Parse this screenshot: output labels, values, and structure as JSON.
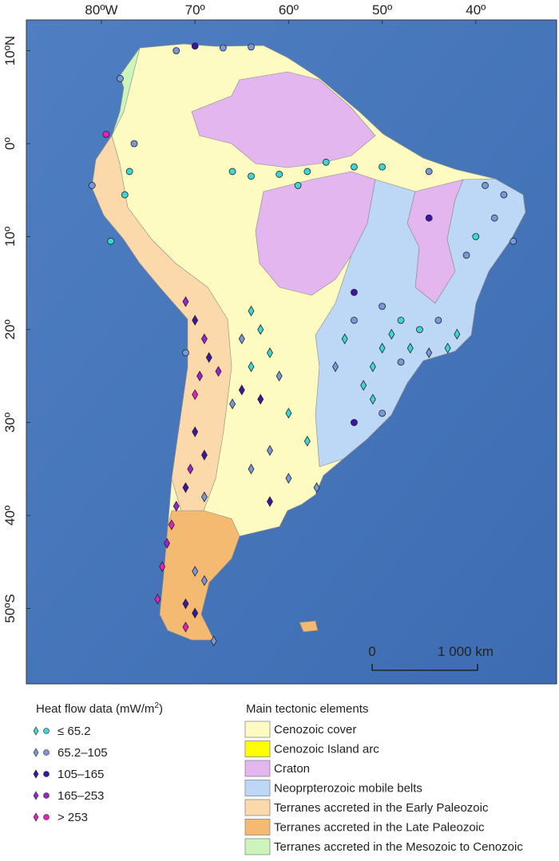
{
  "map": {
    "lon_ticks": [
      {
        "value": -80,
        "label": "80ºW"
      },
      {
        "value": -70,
        "label": "70º"
      },
      {
        "value": -60,
        "label": "60º"
      },
      {
        "value": -50,
        "label": "50º"
      },
      {
        "value": -40,
        "label": "40º"
      }
    ],
    "lat_ticks": [
      {
        "value": 10,
        "label": "10ºN"
      },
      {
        "value": 0,
        "label": "0º"
      },
      {
        "value": -10,
        "label": "10º"
      },
      {
        "value": -20,
        "label": "20º"
      },
      {
        "value": -30,
        "label": "30º"
      },
      {
        "value": -40,
        "label": "40º"
      },
      {
        "value": -50,
        "label": "50ºS"
      }
    ],
    "scale_bar": {
      "start": "0",
      "end": "1 000 km"
    },
    "points": [
      {
        "lon": -72,
        "lat": 10,
        "class": 1,
        "shape": "circle"
      },
      {
        "lon": -70,
        "lat": 10.5,
        "class": 2,
        "shape": "circle"
      },
      {
        "lon": -67,
        "lat": 10.3,
        "class": 1,
        "shape": "circle"
      },
      {
        "lon": -64,
        "lat": 10.4,
        "class": 1,
        "shape": "circle"
      },
      {
        "lon": -78,
        "lat": 7,
        "class": 1,
        "shape": "circle"
      },
      {
        "lon": -79.5,
        "lat": 1,
        "class": 4,
        "shape": "circle"
      },
      {
        "lon": -76.5,
        "lat": 0,
        "class": 1,
        "shape": "circle"
      },
      {
        "lon": -81,
        "lat": -4.5,
        "class": 1,
        "shape": "circle"
      },
      {
        "lon": -77,
        "lat": -3,
        "class": 0,
        "shape": "circle"
      },
      {
        "lon": -77.5,
        "lat": -5.5,
        "class": 0,
        "shape": "circle"
      },
      {
        "lon": -79,
        "lat": -10.5,
        "class": 0,
        "shape": "circle"
      },
      {
        "lon": -66,
        "lat": -3,
        "class": 0,
        "shape": "circle"
      },
      {
        "lon": -64,
        "lat": -3.5,
        "class": 0,
        "shape": "circle"
      },
      {
        "lon": -61,
        "lat": -3.3,
        "class": 0,
        "shape": "circle"
      },
      {
        "lon": -58,
        "lat": -3,
        "class": 0,
        "shape": "circle"
      },
      {
        "lon": -56,
        "lat": -2,
        "class": 0,
        "shape": "circle"
      },
      {
        "lon": -53,
        "lat": -2.5,
        "class": 0,
        "shape": "circle"
      },
      {
        "lon": -50,
        "lat": -2.5,
        "class": 0,
        "shape": "circle"
      },
      {
        "lon": -59,
        "lat": -4.5,
        "class": 0,
        "shape": "circle"
      },
      {
        "lon": -45,
        "lat": -3,
        "class": 1,
        "shape": "circle"
      },
      {
        "lon": -39,
        "lat": -4.5,
        "class": 1,
        "shape": "circle"
      },
      {
        "lon": -37,
        "lat": -5.5,
        "class": 1,
        "shape": "circle"
      },
      {
        "lon": -38,
        "lat": -8,
        "class": 1,
        "shape": "circle"
      },
      {
        "lon": -40,
        "lat": -10,
        "class": 0,
        "shape": "circle"
      },
      {
        "lon": -36,
        "lat": -10.5,
        "class": 1,
        "shape": "circle"
      },
      {
        "lon": -41,
        "lat": -12,
        "class": 1,
        "shape": "circle"
      },
      {
        "lon": -45,
        "lat": -8,
        "class": 2,
        "shape": "circle"
      },
      {
        "lon": -53,
        "lat": -16,
        "class": 2,
        "shape": "circle"
      },
      {
        "lon": -50,
        "lat": -17.5,
        "class": 1,
        "shape": "circle"
      },
      {
        "lon": -48,
        "lat": -19,
        "class": 0,
        "shape": "circle"
      },
      {
        "lon": -46,
        "lat": -20,
        "class": 0,
        "shape": "circle"
      },
      {
        "lon": -44,
        "lat": -19,
        "class": 1,
        "shape": "circle"
      },
      {
        "lon": -42,
        "lat": -20.5,
        "class": 0,
        "shape": "diamond"
      },
      {
        "lon": -43,
        "lat": -22,
        "class": 0,
        "shape": "diamond"
      },
      {
        "lon": -45,
        "lat": -22.5,
        "class": 1,
        "shape": "diamond"
      },
      {
        "lon": -47,
        "lat": -22,
        "class": 0,
        "shape": "diamond"
      },
      {
        "lon": -48,
        "lat": -23.5,
        "class": 1,
        "shape": "circle"
      },
      {
        "lon": -50,
        "lat": -22,
        "class": 0,
        "shape": "diamond"
      },
      {
        "lon": -51,
        "lat": -24,
        "class": 0,
        "shape": "diamond"
      },
      {
        "lon": -52,
        "lat": -26,
        "class": 0,
        "shape": "diamond"
      },
      {
        "lon": -51,
        "lat": -27.5,
        "class": 0,
        "shape": "diamond"
      },
      {
        "lon": -50,
        "lat": -29,
        "class": 1,
        "shape": "circle"
      },
      {
        "lon": -53,
        "lat": -30,
        "class": 2,
        "shape": "circle"
      },
      {
        "lon": -54,
        "lat": -21,
        "class": 0,
        "shape": "diamond"
      },
      {
        "lon": -55,
        "lat": -24,
        "class": 1,
        "shape": "diamond"
      },
      {
        "lon": -49,
        "lat": -20.5,
        "class": 0,
        "shape": "diamond"
      },
      {
        "lon": -53,
        "lat": -19,
        "class": 1,
        "shape": "circle"
      },
      {
        "lon": -64,
        "lat": -18,
        "class": 0,
        "shape": "diamond"
      },
      {
        "lon": -63,
        "lat": -20,
        "class": 0,
        "shape": "diamond"
      },
      {
        "lon": -65,
        "lat": -21,
        "class": 1,
        "shape": "diamond"
      },
      {
        "lon": -62,
        "lat": -22.5,
        "class": 0,
        "shape": "diamond"
      },
      {
        "lon": -64,
        "lat": -24,
        "class": 0,
        "shape": "diamond"
      },
      {
        "lon": -61,
        "lat": -25,
        "class": 1,
        "shape": "diamond"
      },
      {
        "lon": -65,
        "lat": -26.5,
        "class": 2,
        "shape": "diamond"
      },
      {
        "lon": -63,
        "lat": -27.5,
        "class": 2,
        "shape": "diamond"
      },
      {
        "lon": -66,
        "lat": -28,
        "class": 1,
        "shape": "diamond"
      },
      {
        "lon": -60,
        "lat": -29,
        "class": 0,
        "shape": "diamond"
      },
      {
        "lon": -58,
        "lat": -32,
        "class": 0,
        "shape": "diamond"
      },
      {
        "lon": -62,
        "lat": -33,
        "class": 1,
        "shape": "diamond"
      },
      {
        "lon": -64,
        "lat": -35,
        "class": 1,
        "shape": "diamond"
      },
      {
        "lon": -60,
        "lat": -36,
        "class": 1,
        "shape": "diamond"
      },
      {
        "lon": -62,
        "lat": -38.5,
        "class": 2,
        "shape": "diamond"
      },
      {
        "lon": -57,
        "lat": -37,
        "class": 1,
        "shape": "diamond"
      },
      {
        "lon": -71,
        "lat": -17,
        "class": 3,
        "shape": "diamond"
      },
      {
        "lon": -70,
        "lat": -19,
        "class": 2,
        "shape": "diamond"
      },
      {
        "lon": -69,
        "lat": -21,
        "class": 3,
        "shape": "diamond"
      },
      {
        "lon": -68.5,
        "lat": -23,
        "class": 2,
        "shape": "diamond"
      },
      {
        "lon": -69.5,
        "lat": -25,
        "class": 3,
        "shape": "diamond"
      },
      {
        "lon": -70,
        "lat": -27,
        "class": 4,
        "shape": "diamond"
      },
      {
        "lon": -67.5,
        "lat": -24.5,
        "class": 3,
        "shape": "diamond"
      },
      {
        "lon": -71,
        "lat": -22.5,
        "class": 1,
        "shape": "circle"
      },
      {
        "lon": -70,
        "lat": -31,
        "class": 2,
        "shape": "diamond"
      },
      {
        "lon": -69,
        "lat": -33.5,
        "class": 2,
        "shape": "diamond"
      },
      {
        "lon": -70.5,
        "lat": -35,
        "class": 3,
        "shape": "diamond"
      },
      {
        "lon": -71,
        "lat": -37,
        "class": 2,
        "shape": "diamond"
      },
      {
        "lon": -69,
        "lat": -38,
        "class": 1,
        "shape": "diamond"
      },
      {
        "lon": -72,
        "lat": -39,
        "class": 3,
        "shape": "diamond"
      },
      {
        "lon": -72.5,
        "lat": -41,
        "class": 4,
        "shape": "diamond"
      },
      {
        "lon": -73,
        "lat": -43,
        "class": 3,
        "shape": "diamond"
      },
      {
        "lon": -73.5,
        "lat": -45.5,
        "class": 4,
        "shape": "diamond"
      },
      {
        "lon": -70,
        "lat": -46,
        "class": 1,
        "shape": "diamond"
      },
      {
        "lon": -69,
        "lat": -47,
        "class": 1,
        "shape": "diamond"
      },
      {
        "lon": -71,
        "lat": -49.5,
        "class": 2,
        "shape": "diamond"
      },
      {
        "lon": -70,
        "lat": -50.5,
        "class": 2,
        "shape": "diamond"
      },
      {
        "lon": -74,
        "lat": -49,
        "class": 4,
        "shape": "diamond"
      },
      {
        "lon": -71,
        "lat": -52,
        "class": 4,
        "shape": "diamond"
      },
      {
        "lon": -68,
        "lat": -53.5,
        "class": 1,
        "shape": "diamond"
      }
    ]
  },
  "legend_heat_flow": {
    "title": "Heat flow data (mW/m",
    "title_sup": "2",
    "title_end": ")",
    "classes": [
      {
        "label": "≤ 65.2",
        "color": "#3cd6d6"
      },
      {
        "label": "65.2–105",
        "color": "#7898dc"
      },
      {
        "label": "105–165",
        "color": "#3a16a8"
      },
      {
        "label": "165–253",
        "color": "#9c22d2"
      },
      {
        "label": "> 253",
        "color": "#e81ec4"
      }
    ]
  },
  "legend_tectonic": {
    "title": "Main tectonic elements",
    "items": [
      {
        "label": "Cenozoic cover",
        "color": "#fdfbc2"
      },
      {
        "label": "Cenozoic Island arc",
        "color": "#ffff00"
      },
      {
        "label": "Craton",
        "color": "#e4b6f0"
      },
      {
        "label": "Neoprpterozoic mobile belts",
        "color": "#bcd8f6"
      },
      {
        "label": "Terranes accreted in the Early Paleozoic",
        "color": "#fbd9aa"
      },
      {
        "label": "Terranes accreted in the Late Paleozoic",
        "color": "#f5ba72"
      },
      {
        "label": "Terranes accreted in the Mesozoic to Cenozoic",
        "color": "#cbf5bb"
      }
    ]
  }
}
